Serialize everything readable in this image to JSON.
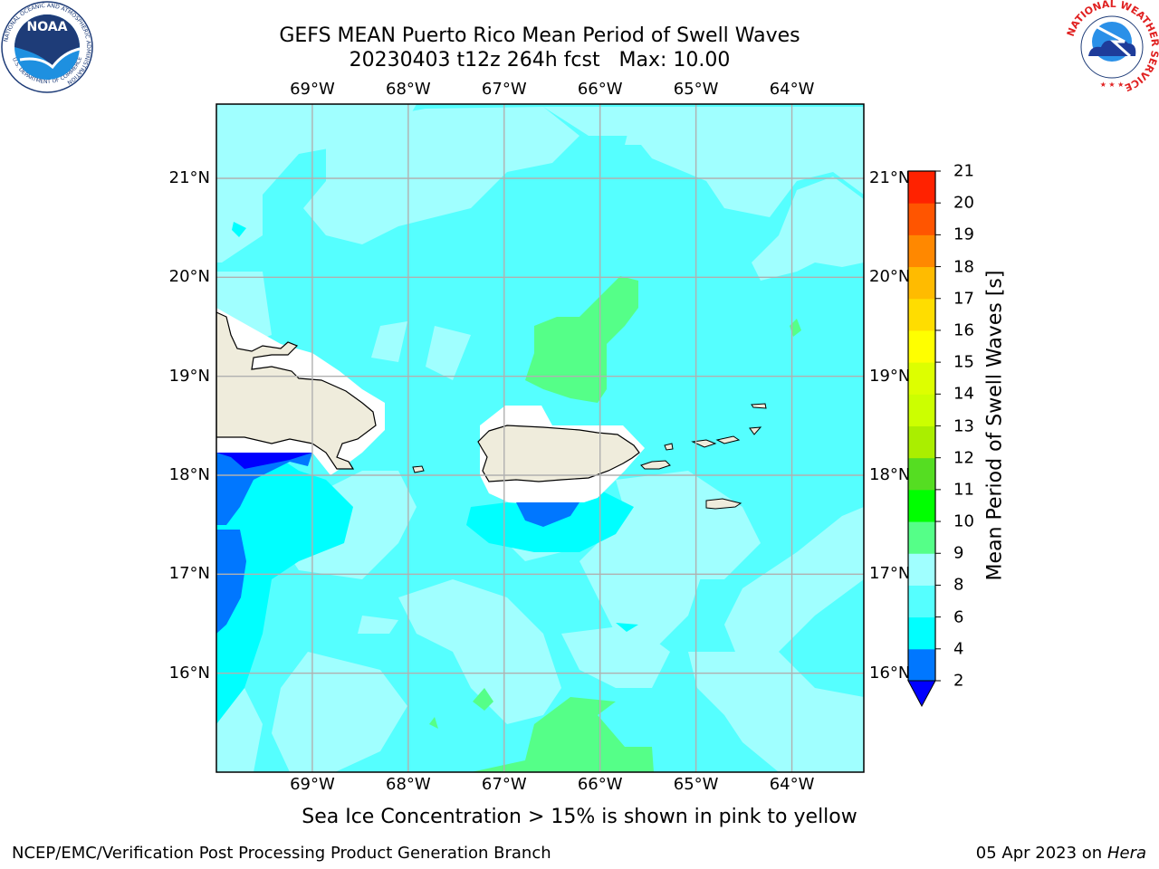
{
  "title": {
    "line1": "GEFS MEAN Puerto Rico Mean Period of Swell Waves",
    "line2": "20230403 t12z 264h fcst   Max: 10.00"
  },
  "map": {
    "lon_range": [
      -70.0,
      -63.25
    ],
    "lat_range": [
      15.0,
      21.75
    ],
    "lon_ticks": [
      "69°W",
      "68°W",
      "67°W",
      "66°W",
      "65°W",
      "64°W"
    ],
    "lat_ticks": [
      "21°N",
      "20°N",
      "19°N",
      "18°N",
      "17°N",
      "16°N"
    ],
    "grid": true,
    "land_color": "#efecdc"
  },
  "colorbar": {
    "label": "Mean Period of Swell Waves [s]",
    "ticks": [
      "2",
      "4",
      "6",
      "8",
      "9",
      "10",
      "11",
      "12",
      "13",
      "14",
      "15",
      "16",
      "17",
      "18",
      "19",
      "20",
      "21"
    ],
    "colors": [
      "#0077ff",
      "#00ffff",
      "#55ffff",
      "#a0ffff",
      "#55ff88",
      "#00ff00",
      "#55dd22",
      "#aaee00",
      "#ccff00",
      "#ddff00",
      "#ffff00",
      "#ffdd00",
      "#ffbb00",
      "#ff8800",
      "#ff5500",
      "#ff2200"
    ],
    "extend_color": "#0000ff"
  },
  "note": "Sea Ice Concentration > 15% is shown in pink to yellow",
  "footer": {
    "left": "NCEP/EMC/Verification Post Processing Product Generation Branch",
    "date": "05 Apr 2023 on ",
    "system": "Hera"
  },
  "logos": {
    "noara_text": "NOAA",
    "noaa_ring": "NATIONAL OCEANIC AND ATMOSPHERIC ADMINISTRATION",
    "noaa_ring_bottom": "U.S. DEPARTMENT OF COMMERCE",
    "nws_ring": "NATIONAL WEATHER SERVICE"
  }
}
